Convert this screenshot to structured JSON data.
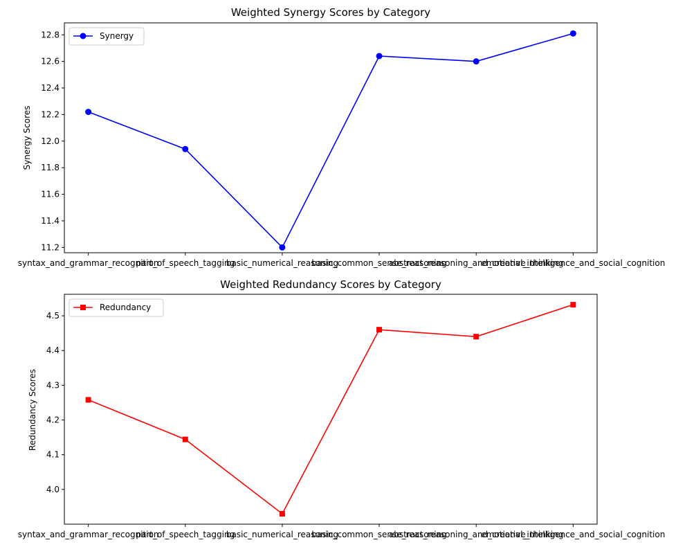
{
  "chart_data": [
    {
      "type": "line",
      "title": "Weighted Synergy Scores by Category",
      "xlabel": "",
      "ylabel": "Synergy Scores",
      "categories": [
        "syntax_and_grammar_recognition",
        "part_of_speech_tagging",
        "basic_numerical_reasoning",
        "basic_common_sense_reasoning",
        "abstract_reasoning_and_creative_thinking",
        "emotional_intelligence_and_social_cognition"
      ],
      "series": [
        {
          "name": "Synergy",
          "values": [
            12.22,
            11.94,
            11.2,
            12.64,
            12.6,
            12.81
          ],
          "color": "#0000ff",
          "marker": "circle"
        }
      ],
      "ylim": [
        11.16,
        12.89
      ],
      "yticks": [
        "11.2",
        "11.4",
        "11.6",
        "11.8",
        "12.0",
        "12.2",
        "12.4",
        "12.6",
        "12.8"
      ],
      "grid": false,
      "legend": "upper-left"
    },
    {
      "type": "line",
      "title": "Weighted Redundancy Scores by Category",
      "xlabel": "",
      "ylabel": "Redundancy Scores",
      "categories": [
        "syntax_and_grammar_recognition",
        "part_of_speech_tagging",
        "basic_numerical_reasoning",
        "basic_common_sense_reasoning",
        "abstract_reasoning_and_creative_thinking",
        "emotional_intelligence_and_social_cognition"
      ],
      "series": [
        {
          "name": "Redundancy",
          "values": [
            4.258,
            4.144,
            3.93,
            4.46,
            4.44,
            4.532
          ],
          "color": "#ff0000",
          "marker": "square"
        }
      ],
      "ylim": [
        3.9,
        4.562
      ],
      "yticks": [
        "4.0",
        "4.1",
        "4.2",
        "4.3",
        "4.4",
        "4.5"
      ],
      "grid": false,
      "legend": "upper-left"
    }
  ]
}
